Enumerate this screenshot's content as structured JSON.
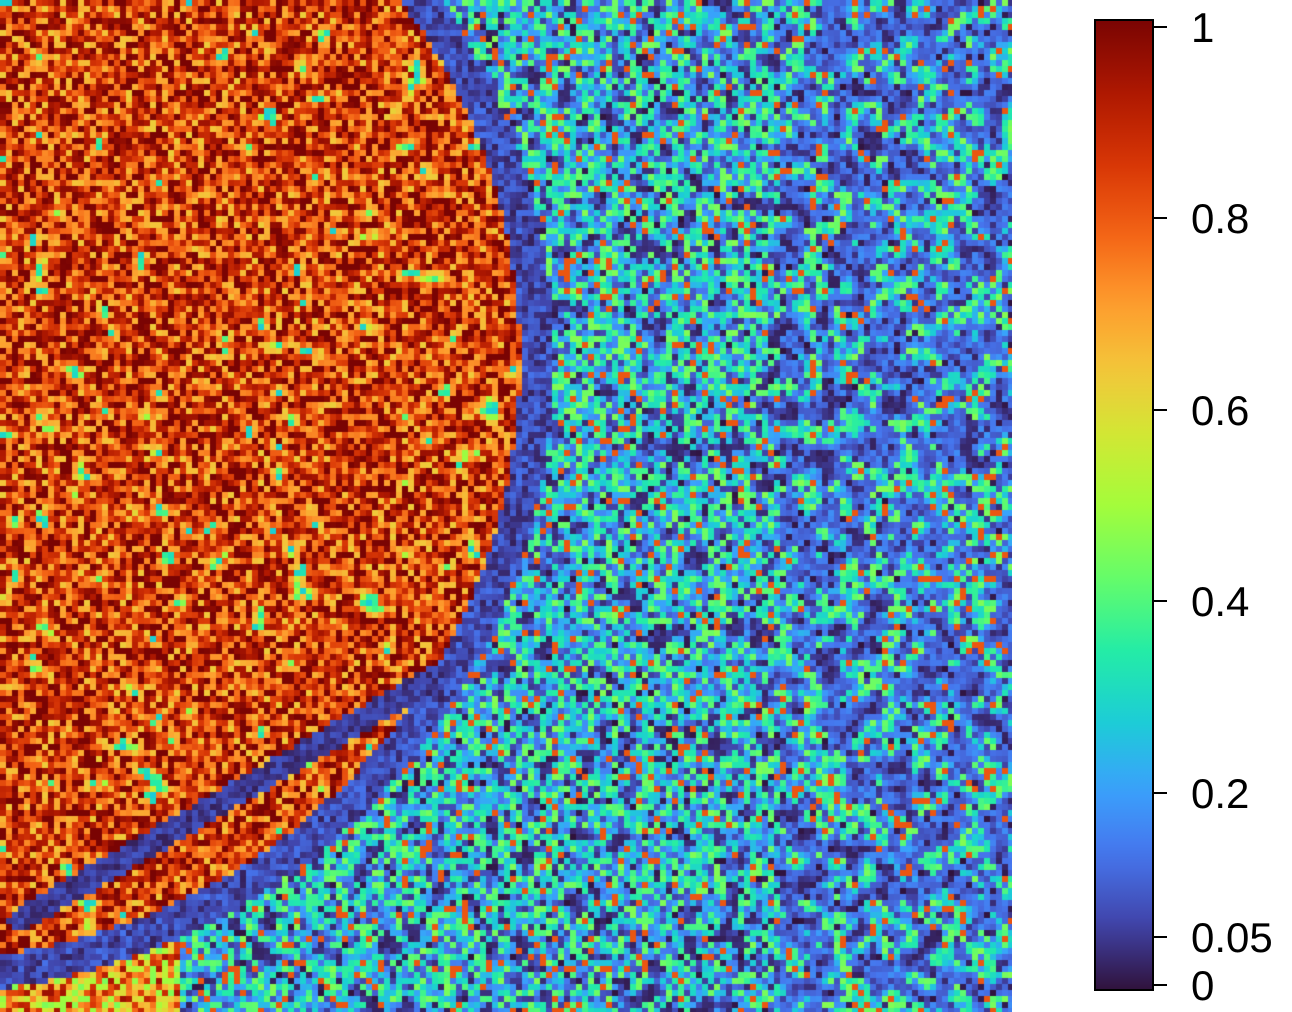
{
  "chart_data": {
    "type": "heatmap",
    "title": "",
    "xlabel": "",
    "ylabel": "",
    "colorscale": "turbo",
    "value_range": [
      0,
      1
    ],
    "colorbar": {
      "position": "right",
      "ticks": [
        {
          "value": 1,
          "label": "1"
        },
        {
          "value": 0.8,
          "label": "0.8"
        },
        {
          "value": 0.6,
          "label": "0.6"
        },
        {
          "value": 0.4,
          "label": "0.4"
        },
        {
          "value": 0.2,
          "label": "0.2"
        },
        {
          "value": 0.05,
          "label": "0.05"
        },
        {
          "value": 0,
          "label": "0"
        }
      ]
    },
    "regions": [
      {
        "name": "upper-left-disc",
        "approx_value": 0.85
      },
      {
        "name": "background-field",
        "approx_value": 0.25
      },
      {
        "name": "boundary-bands",
        "approx_value": 0.02
      }
    ]
  }
}
